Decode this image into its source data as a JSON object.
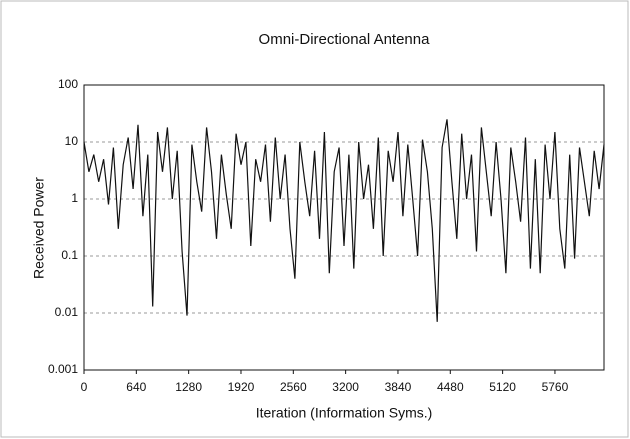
{
  "chart_data": {
    "type": "line",
    "title": "Omni-Directional Antenna",
    "x_label": "Iteration (Information Syms.)",
    "y_label": "Received Power",
    "color": "#111111",
    "log_y": true,
    "grid": true,
    "xlim": [
      0,
      6360
    ],
    "xticks": [
      0,
      640,
      1280,
      1920,
      2560,
      3200,
      3840,
      4480,
      5120,
      5760
    ],
    "ylim": [
      0.001,
      100
    ],
    "yticks": [
      0.001,
      0.01,
      0.1,
      1,
      10,
      100
    ],
    "x": [
      0,
      60,
      120,
      180,
      240,
      300,
      360,
      420,
      480,
      540,
      600,
      660,
      720,
      780,
      840,
      900,
      960,
      1020,
      1080,
      1140,
      1200,
      1260,
      1320,
      1380,
      1440,
      1500,
      1560,
      1620,
      1680,
      1740,
      1800,
      1860,
      1920,
      1980,
      2040,
      2100,
      2160,
      2220,
      2280,
      2340,
      2400,
      2460,
      2520,
      2580,
      2640,
      2700,
      2760,
      2820,
      2880,
      2940,
      3000,
      3060,
      3120,
      3180,
      3240,
      3300,
      3360,
      3420,
      3480,
      3540,
      3600,
      3660,
      3720,
      3780,
      3840,
      3900,
      3960,
      4020,
      4080,
      4140,
      4200,
      4260,
      4320,
      4380,
      4440,
      4500,
      4560,
      4620,
      4680,
      4740,
      4800,
      4860,
      4920,
      4980,
      5040,
      5100,
      5160,
      5220,
      5280,
      5340,
      5400,
      5460,
      5520,
      5580,
      5640,
      5700,
      5760,
      5820,
      5880,
      5940,
      6000,
      6060,
      6120,
      6180,
      6240,
      6300,
      6360
    ],
    "values": [
      10,
      3,
      6,
      2,
      5,
      0.8,
      8,
      0.3,
      4,
      12,
      1.5,
      20,
      0.5,
      6,
      0.013,
      15,
      3,
      18,
      1,
      7,
      0.12,
      0.009,
      9,
      2,
      0.6,
      18,
      3,
      0.2,
      6,
      1.2,
      0.3,
      14,
      4,
      10,
      0.15,
      5,
      2,
      9,
      0.4,
      12,
      1,
      6,
      0.3,
      0.04,
      10,
      2,
      0.5,
      7,
      0.2,
      15,
      0.05,
      3,
      8,
      0.15,
      6,
      0.06,
      10,
      1,
      4,
      0.3,
      12,
      0.1,
      7,
      2,
      15,
      0.5,
      9,
      1,
      0.1,
      11,
      3,
      0.3,
      0.007,
      8,
      25,
      2,
      0.2,
      14,
      1,
      6,
      0.12,
      18,
      3,
      0.5,
      10,
      1,
      0.05,
      8,
      2,
      0.4,
      12,
      0.06,
      5,
      0.05,
      9,
      1,
      15,
      0.3,
      0.06,
      6,
      0.09,
      8,
      2,
      0.5,
      7,
      1.5,
      9
    ]
  }
}
